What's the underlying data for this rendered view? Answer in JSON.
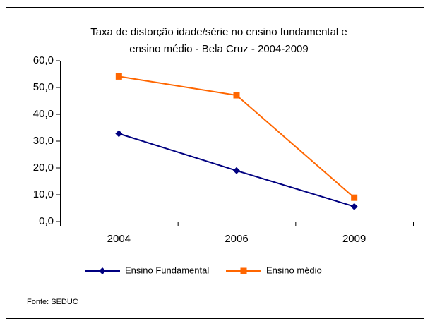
{
  "chart_data": {
    "type": "line",
    "title": [
      "Taxa de distorção idade/série no ensino fundamental e",
      "ensino médio - Bela Cruz - 2004-2009"
    ],
    "categories": [
      "2004",
      "2006",
      "2009"
    ],
    "series": [
      {
        "name": "Ensino Fundamental",
        "color": "#000080",
        "marker": "diamond",
        "values": [
          32.8,
          19.0,
          5.6
        ]
      },
      {
        "name": "Ensino médio",
        "color": "#ff6600",
        "marker": "square",
        "values": [
          54.1,
          47.1,
          8.9
        ]
      }
    ],
    "ylim": [
      0,
      60
    ],
    "yticks": [
      {
        "value": 0,
        "label": "0,0"
      },
      {
        "value": 10,
        "label": "10,0"
      },
      {
        "value": 20,
        "label": "20,0"
      },
      {
        "value": 30,
        "label": "30,0"
      },
      {
        "value": 40,
        "label": "40,0"
      },
      {
        "value": 50,
        "label": "50,0"
      },
      {
        "value": 60,
        "label": "60,0"
      }
    ],
    "grid": false,
    "legend": "bottom",
    "source": "Fonte: SEDUC"
  }
}
